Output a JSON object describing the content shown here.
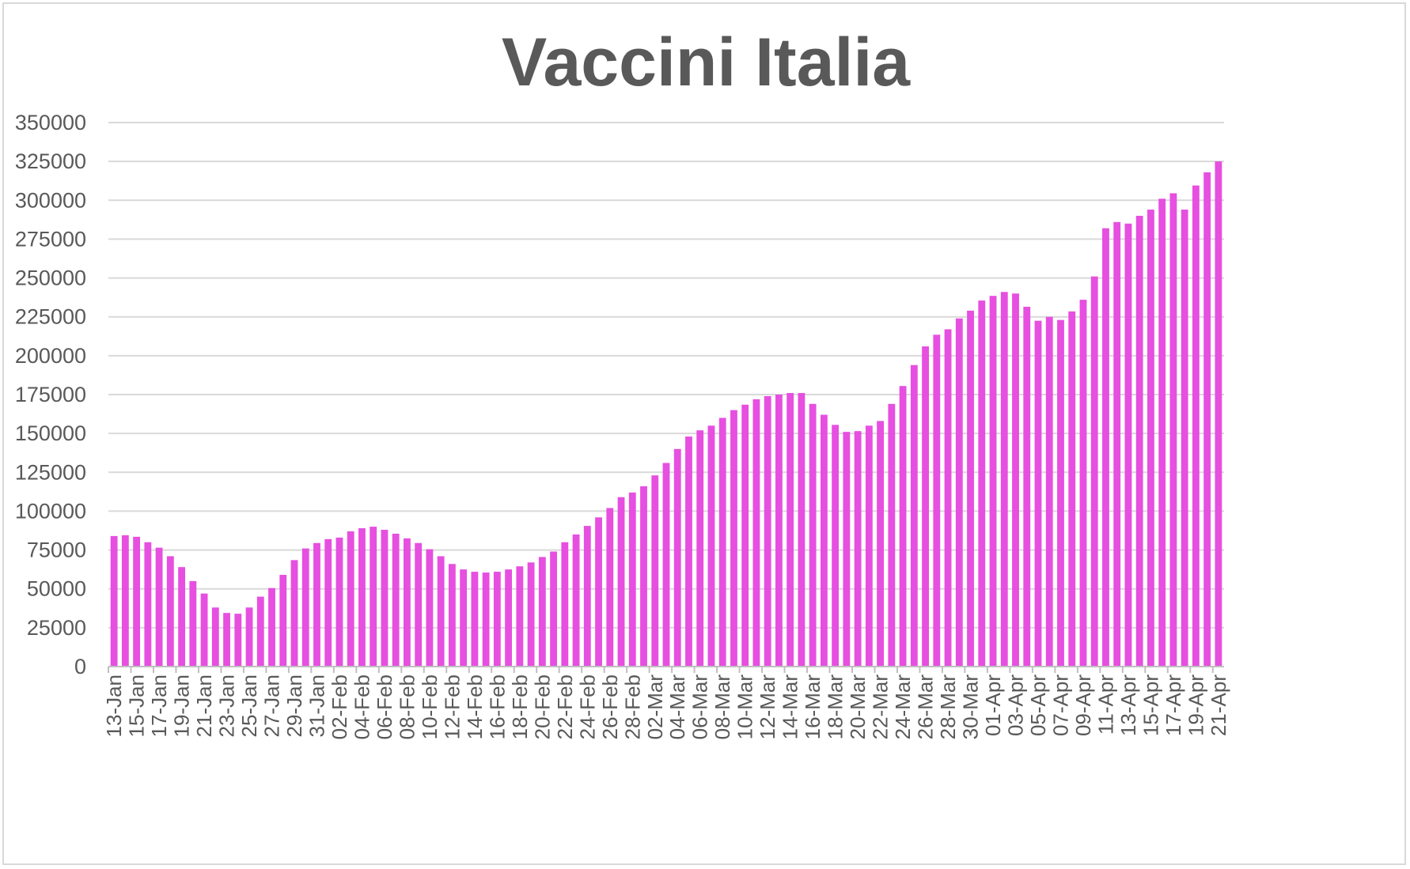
{
  "chart_data": {
    "type": "bar",
    "title": "Vaccini Italia",
    "xlabel": "",
    "ylabel": "",
    "ylim": [
      0,
      350000
    ],
    "yticks": [
      0,
      25000,
      50000,
      75000,
      100000,
      125000,
      150000,
      175000,
      200000,
      225000,
      250000,
      275000,
      300000,
      325000,
      350000
    ],
    "grid": true,
    "legend": "none",
    "bar_color": "#e64fe0",
    "categories": [
      "13-Jan",
      "14-Jan",
      "15-Jan",
      "16-Jan",
      "17-Jan",
      "18-Jan",
      "19-Jan",
      "20-Jan",
      "21-Jan",
      "22-Jan",
      "23-Jan",
      "24-Jan",
      "25-Jan",
      "26-Jan",
      "27-Jan",
      "28-Jan",
      "29-Jan",
      "30-Jan",
      "31-Jan",
      "01-Feb",
      "02-Feb",
      "03-Feb",
      "04-Feb",
      "05-Feb",
      "06-Feb",
      "07-Feb",
      "08-Feb",
      "09-Feb",
      "10-Feb",
      "11-Feb",
      "12-Feb",
      "13-Feb",
      "14-Feb",
      "15-Feb",
      "16-Feb",
      "17-Feb",
      "18-Feb",
      "19-Feb",
      "20-Feb",
      "21-Feb",
      "22-Feb",
      "23-Feb",
      "24-Feb",
      "25-Feb",
      "26-Feb",
      "27-Feb",
      "28-Feb",
      "01-Mar",
      "02-Mar",
      "03-Mar",
      "04-Mar",
      "05-Mar",
      "06-Mar",
      "07-Mar",
      "08-Mar",
      "09-Mar",
      "10-Mar",
      "11-Mar",
      "12-Mar",
      "13-Mar",
      "14-Mar",
      "15-Mar",
      "16-Mar",
      "17-Mar",
      "18-Mar",
      "19-Mar",
      "20-Mar",
      "21-Mar",
      "22-Mar",
      "23-Mar",
      "24-Mar",
      "25-Mar",
      "26-Mar",
      "27-Mar",
      "28-Mar",
      "29-Mar",
      "30-Mar",
      "31-Mar",
      "01-Apr",
      "02-Apr",
      "03-Apr",
      "04-Apr",
      "05-Apr",
      "06-Apr",
      "07-Apr",
      "08-Apr",
      "09-Apr",
      "10-Apr",
      "11-Apr",
      "12-Apr",
      "13-Apr",
      "14-Apr",
      "15-Apr",
      "16-Apr",
      "17-Apr",
      "18-Apr",
      "19-Apr",
      "20-Apr",
      "21-Apr"
    ],
    "values": [
      84000,
      84500,
      83500,
      80000,
      76500,
      71000,
      64000,
      55000,
      47000,
      38000,
      34500,
      34000,
      38000,
      45000,
      50500,
      59000,
      68500,
      76000,
      79500,
      82000,
      83000,
      87000,
      89000,
      90000,
      88000,
      85500,
      82500,
      79500,
      75500,
      71000,
      66000,
      62500,
      61000,
      60500,
      61000,
      62500,
      64500,
      67000,
      70500,
      74000,
      80000,
      85000,
      90500,
      96000,
      102000,
      109000,
      112000,
      116000,
      123000,
      131000,
      140000,
      148000,
      152000,
      155000,
      160000,
      165000,
      168500,
      172000,
      174000,
      175000,
      176000,
      176000,
      169000,
      162000,
      155500,
      151000,
      151500,
      155000,
      158000,
      169000,
      180500,
      194000,
      206000,
      213500,
      217000,
      224000,
      229000,
      235500,
      238500,
      241000,
      240000,
      231500,
      222500,
      225000,
      223000,
      228500,
      236000,
      251000,
      282000,
      286000,
      285000,
      290000,
      294000,
      301000,
      304500,
      294000,
      309500,
      318000,
      325000
    ]
  }
}
